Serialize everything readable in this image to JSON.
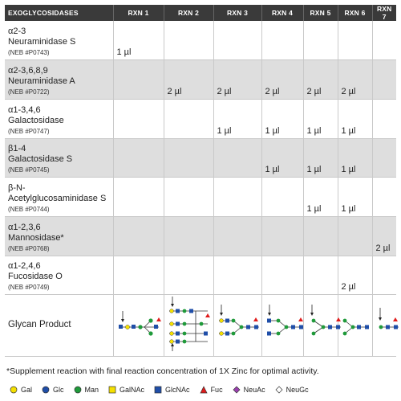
{
  "table": {
    "header": [
      "EXOGLYCOSIDASES",
      "RXN 1",
      "RXN 2",
      "RXN 3",
      "RXN 4",
      "RXN 5",
      "RXN 6",
      "RXN 7"
    ],
    "rows": [
      {
        "name1": "α2-3",
        "name2": "Neuraminidase S",
        "neb": "(NEB #P0743)",
        "cells": [
          "1 µl",
          "",
          "",
          "",
          "",
          "",
          ""
        ]
      },
      {
        "name1": "α2-3,6,8,9",
        "name2": "Neuraminidase A",
        "neb": "(NEB #P0722)",
        "cells": [
          "",
          "2 µl",
          "2 µl",
          "2 µl",
          "2 µl",
          "2 µl",
          ""
        ]
      },
      {
        "name1": "α1-3,4,6",
        "name2": "Galactosidase",
        "neb": "(NEB #P0747)",
        "cells": [
          "",
          "",
          "1 µl",
          "1 µl",
          "1 µl",
          "1 µl",
          ""
        ]
      },
      {
        "name1": "β1-4",
        "name2": "Galactosidase S",
        "neb": "(NEB #P0745)",
        "cells": [
          "",
          "",
          "",
          "1 µl",
          "1 µl",
          "1 µl",
          ""
        ]
      },
      {
        "name1": "β-N-",
        "name2": "Acetylglucosaminidase S",
        "neb": "(NEB #P0744)",
        "cells": [
          "",
          "",
          "",
          "",
          "1 µl",
          "1 µl",
          ""
        ]
      },
      {
        "name1": "α1-2,3,6",
        "name2": "Mannosidase*",
        "neb": "(NEB #P0768)",
        "cells": [
          "",
          "",
          "",
          "",
          "",
          "",
          "2 µl"
        ]
      },
      {
        "name1": "α1-2,4,6",
        "name2": "Fucosidase O",
        "neb": "(NEB #P0749)",
        "cells": [
          "",
          "",
          "",
          "",
          "",
          "2 µl",
          ""
        ]
      }
    ],
    "glycan_label": "Glycan Product"
  },
  "footnote": "*Supplement reaction with final reaction concentration of 1X Zinc for optimal activity.",
  "legend": [
    {
      "label": "Gal",
      "shape": "circle",
      "color": "#f5e000",
      "icon": "gal-circle-icon"
    },
    {
      "label": "Glc",
      "shape": "circle",
      "color": "#1f4ea8",
      "icon": "glc-circle-icon"
    },
    {
      "label": "Man",
      "shape": "circle",
      "color": "#1f9a3a",
      "icon": "man-circle-icon"
    },
    {
      "label": "GalNAc",
      "shape": "square",
      "color": "#f5e000",
      "icon": "galnac-square-icon"
    },
    {
      "label": "GlcNAc",
      "shape": "square",
      "color": "#1f4ea8",
      "icon": "glcnac-square-icon"
    },
    {
      "label": "Fuc",
      "shape": "triangle",
      "color": "#e01b1b",
      "icon": "fuc-triangle-icon"
    },
    {
      "label": "NeuAc",
      "shape": "diamond",
      "color": "#9b3fb0",
      "icon": "neuac-diamond-icon"
    },
    {
      "label": "NeuGc",
      "shape": "diamond",
      "color": "#ffffff",
      "icon": "neugc-diamond-icon"
    }
  ]
}
